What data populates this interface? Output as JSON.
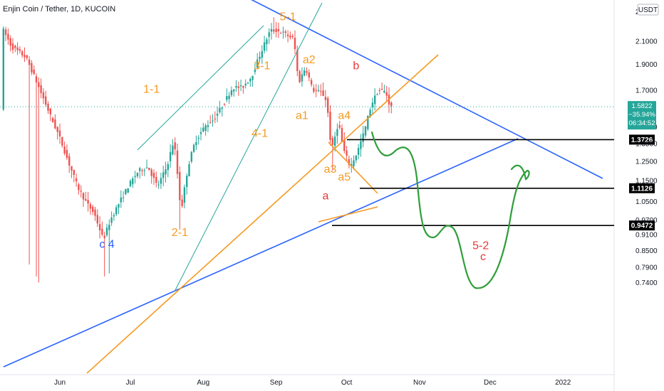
{
  "header": {
    "title": "Enjin Coin / Tether, 1D, KUCOIN",
    "currency": "USDT"
  },
  "chart_data": {
    "type": "candlestick",
    "title": "Enjin Coin / Tether, 1D, KUCOIN",
    "y_scale": "log",
    "ylim": [
      0.72,
      2.3
    ],
    "y_ticks": [
      "2.1000",
      "1.9000",
      "1.7000",
      "1.4500",
      "1.3500",
      "1.2500",
      "1.1500",
      "1.0500",
      "0.9700",
      "0.9100",
      "0.8500",
      "0.7900",
      "0.7400"
    ],
    "y_tick_values": [
      2.1,
      1.9,
      1.7,
      1.45,
      1.35,
      1.25,
      1.15,
      1.05,
      0.97,
      0.91,
      0.85,
      0.79,
      0.74
    ],
    "y_top_partial": "2",
    "x_ticks": [
      "Jun",
      "Jul",
      "Aug",
      "Sep",
      "Oct",
      "Nov",
      "Dec",
      "2022"
    ],
    "x_tick_dates": [
      "2021-06-01",
      "2021-07-01",
      "2021-08-01",
      "2021-09-01",
      "2021-10-01",
      "2021-11-01",
      "2021-12-01",
      "2022-01-01"
    ],
    "current_price": {
      "value": 1.5822,
      "label": "1.5822",
      "change": "−35.94%",
      "countdown": "06:34:52",
      "color": "#26a69a"
    },
    "horizontal_levels": [
      {
        "value": 1.3726,
        "label": "1.3726"
      },
      {
        "value": 1.1126,
        "label": "1.1126"
      },
      {
        "value": 0.9472,
        "label": "0.9472"
      }
    ],
    "wave_labels": [
      {
        "text": "5-1",
        "date": "2021-09-06",
        "price": 2.3,
        "color": "orange"
      },
      {
        "text": "1-1",
        "date": "2021-07-10",
        "price": 1.68,
        "color": "orange"
      },
      {
        "text": "3-1",
        "date": "2021-08-26",
        "price": 1.86,
        "color": "orange"
      },
      {
        "text": "a2",
        "date": "2021-09-15",
        "price": 1.91,
        "color": "orange"
      },
      {
        "text": "a1",
        "date": "2021-09-12",
        "price": 1.5,
        "color": "orange"
      },
      {
        "text": "a4",
        "date": "2021-09-30",
        "price": 1.5,
        "color": "orange"
      },
      {
        "text": "4-1",
        "date": "2021-08-25",
        "price": 1.39,
        "color": "orange"
      },
      {
        "text": "a3",
        "date": "2021-09-24",
        "price": 1.19,
        "color": "orange"
      },
      {
        "text": "a5",
        "date": "2021-09-30",
        "price": 1.15,
        "color": "orange"
      },
      {
        "text": "2-1",
        "date": "2021-07-22",
        "price": 0.905,
        "color": "orange"
      },
      {
        "text": "b",
        "date": "2021-10-05",
        "price": 1.86,
        "color": "red"
      },
      {
        "text": "a",
        "date": "2021-09-22",
        "price": 1.06,
        "color": "red"
      },
      {
        "text": "5-2",
        "date": "2021-11-27",
        "price": 0.855,
        "color": "red"
      },
      {
        "text": "c",
        "date": "2021-11-28",
        "price": 0.815,
        "color": "red"
      },
      {
        "text": "c 4",
        "date": "2021-06-21",
        "price": 0.86,
        "color": "blue"
      }
    ],
    "colors": {
      "up": "#26a69a",
      "down": "#ef5350",
      "trend_blue": "#2962ff",
      "trend_orange": "#f59a23",
      "channel_green": "#26a69a",
      "projection_green": "#2e9e3a",
      "level_black": "#000000"
    }
  }
}
